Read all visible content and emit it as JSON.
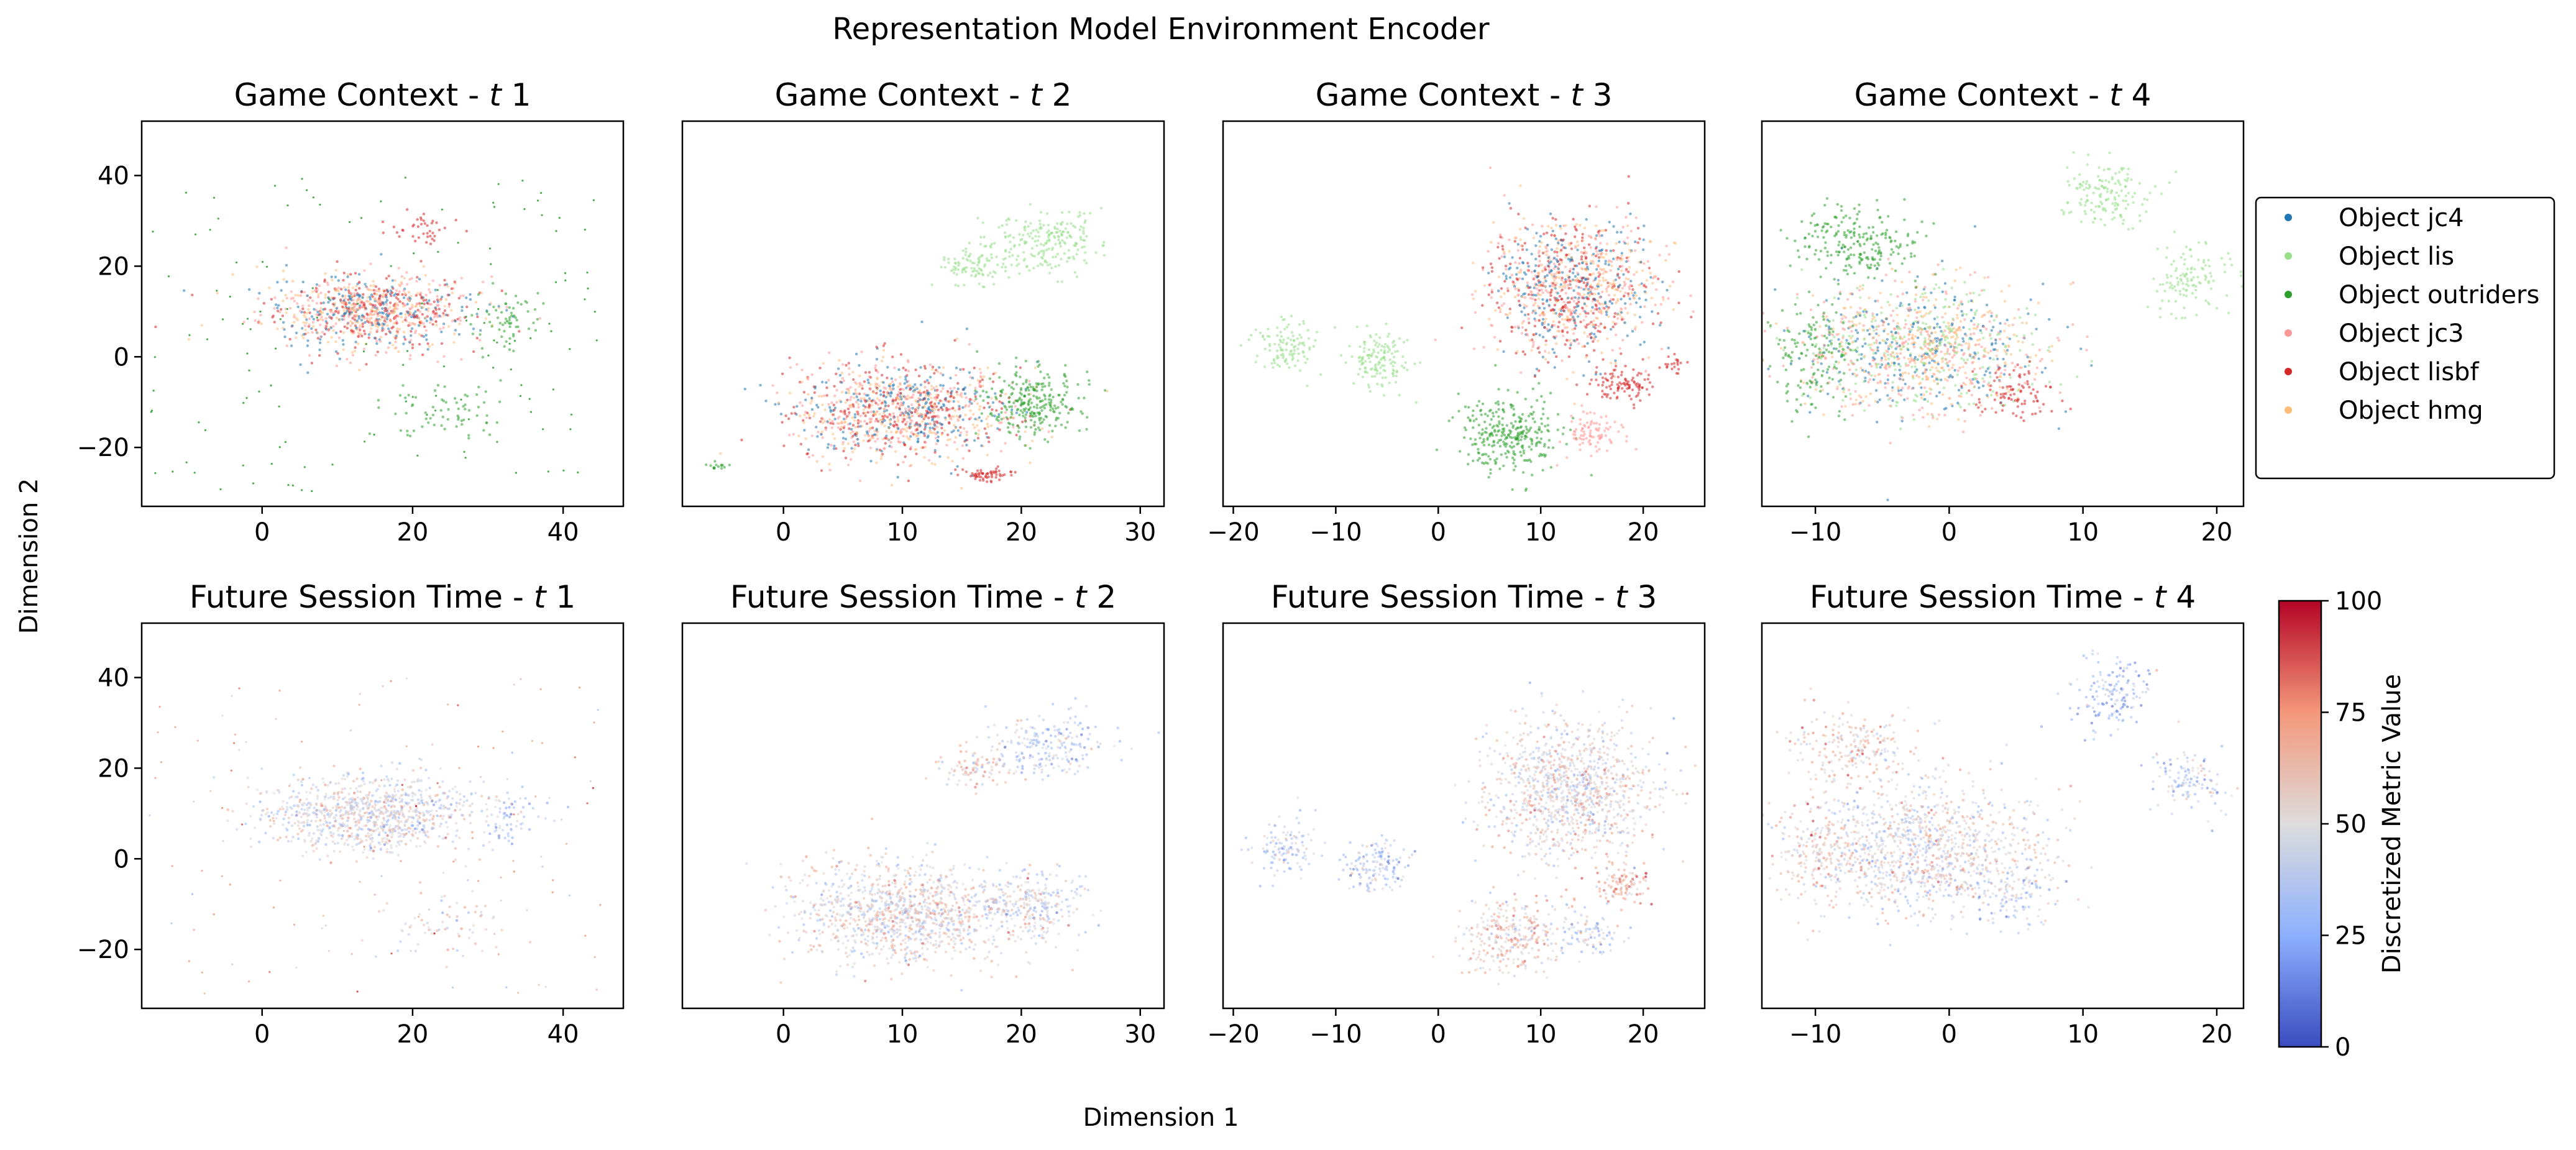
{
  "figure": {
    "title": "Representation Model Environment Encoder",
    "xlabel": "Dimension 1",
    "ylabel": "Dimension 2"
  },
  "legend": {
    "placement": "right of top row",
    "entries": [
      {
        "label": "Object jc4",
        "color": "#1f77b4"
      },
      {
        "label": "Object lis",
        "color": "#98df8a"
      },
      {
        "label": "Object outriders",
        "color": "#2ca02c"
      },
      {
        "label": "Object jc3",
        "color": "#ff9896"
      },
      {
        "label": "Object lisbf",
        "color": "#d62728"
      },
      {
        "label": "Object hmg",
        "color": "#ffbb78"
      }
    ]
  },
  "colorbar": {
    "label": "Discretized Metric Value",
    "colormap": "coolwarm",
    "range": [
      0,
      100
    ],
    "ticks": [
      "0",
      "25",
      "50",
      "75",
      "100"
    ]
  },
  "chart_data": [
    {
      "type": "scatter",
      "title_prefix": "Game Context - ",
      "title_var": "t",
      "title_num": "1",
      "color_by": "category",
      "xlim": [
        -16,
        48
      ],
      "ylim": [
        -33,
        52
      ],
      "xticks": [
        {
          "v": 0,
          "l": "0"
        },
        {
          "v": 20,
          "l": "20"
        },
        {
          "v": 40,
          "l": "40"
        }
      ],
      "yticks": [
        {
          "v": -20,
          "l": "−20"
        },
        {
          "v": 0,
          "l": "0"
        },
        {
          "v": 20,
          "l": "20"
        },
        {
          "v": 40,
          "l": "40"
        }
      ],
      "clusters": [
        {
          "cx": 14,
          "cy": 10,
          "rx": 14,
          "ry": 8,
          "n": 950,
          "cats": [
            5,
            3,
            0,
            4
          ]
        },
        {
          "cx": 22,
          "cy": 28,
          "rx": 5,
          "ry": 4,
          "n": 40,
          "cats": [
            4
          ]
        },
        {
          "cx": 33,
          "cy": 9,
          "rx": 4,
          "ry": 6,
          "n": 60,
          "cats": [
            2
          ]
        },
        {
          "cx": 24,
          "cy": -12,
          "rx": 8,
          "ry": 7,
          "n": 70,
          "cats": [
            2
          ]
        },
        {
          "cx": 15,
          "cy": 5,
          "rx": 30,
          "ry": 35,
          "n": 140,
          "cats": [
            2
          ]
        }
      ]
    },
    {
      "type": "scatter",
      "title_prefix": "Game Context - ",
      "title_var": "t",
      "title_num": "2",
      "color_by": "category",
      "xlim": [
        -8.5,
        32
      ],
      "ylim": [
        -33,
        52
      ],
      "xticks": [
        {
          "v": 0,
          "l": "0"
        },
        {
          "v": 10,
          "l": "10"
        },
        {
          "v": 20,
          "l": "20"
        },
        {
          "v": 30,
          "l": "30"
        }
      ],
      "yticks": [],
      "clusters": [
        {
          "cx": 10,
          "cy": -12,
          "rx": 9,
          "ry": 11,
          "n": 1100,
          "cats": [
            5,
            3,
            0,
            4
          ]
        },
        {
          "cx": 21,
          "cy": -10,
          "rx": 4,
          "ry": 7,
          "n": 260,
          "cats": [
            2
          ]
        },
        {
          "cx": 17,
          "cy": -26,
          "rx": 2,
          "ry": 1.5,
          "n": 60,
          "cats": [
            4
          ]
        },
        {
          "cx": 22,
          "cy": 25,
          "rx": 5,
          "ry": 7,
          "n": 220,
          "cats": [
            1
          ]
        },
        {
          "cx": 16,
          "cy": 20,
          "rx": 3,
          "ry": 4,
          "n": 90,
          "cats": [
            1
          ]
        },
        {
          "cx": -5.5,
          "cy": -24,
          "rx": 1,
          "ry": 1,
          "n": 15,
          "cats": [
            2
          ]
        }
      ]
    },
    {
      "type": "scatter",
      "title_prefix": "Game Context - ",
      "title_var": "t",
      "title_num": "3",
      "color_by": "category",
      "xlim": [
        -21,
        26
      ],
      "ylim": [
        -33,
        52
      ],
      "xticks": [
        {
          "v": -20,
          "l": "−20"
        },
        {
          "v": -10,
          "l": "−10"
        },
        {
          "v": 0,
          "l": "0"
        },
        {
          "v": 10,
          "l": "10"
        },
        {
          "v": 20,
          "l": "20"
        }
      ],
      "yticks": [],
      "clusters": [
        {
          "cx": 13,
          "cy": 15,
          "rx": 8,
          "ry": 15,
          "n": 1100,
          "cats": [
            5,
            3,
            0,
            4
          ]
        },
        {
          "cx": 7,
          "cy": -17,
          "rx": 5,
          "ry": 8,
          "n": 300,
          "cats": [
            2
          ]
        },
        {
          "cx": 15,
          "cy": -17,
          "rx": 3,
          "ry": 5,
          "n": 90,
          "cats": [
            3
          ]
        },
        {
          "cx": 18,
          "cy": -6,
          "rx": 3,
          "ry": 4,
          "n": 100,
          "cats": [
            4
          ]
        },
        {
          "cx": -15,
          "cy": 2,
          "rx": 3,
          "ry": 6,
          "n": 110,
          "cats": [
            1
          ]
        },
        {
          "cx": -6,
          "cy": -1,
          "rx": 3,
          "ry": 6,
          "n": 140,
          "cats": [
            1
          ]
        },
        {
          "cx": 23,
          "cy": -2,
          "rx": 1,
          "ry": 2,
          "n": 20,
          "cats": [
            4
          ]
        }
      ]
    },
    {
      "type": "scatter",
      "title_prefix": "Game Context - ",
      "title_var": "t",
      "title_num": "4",
      "color_by": "category",
      "xlim": [
        -14,
        22
      ],
      "ylim": [
        -33,
        52
      ],
      "xticks": [
        {
          "v": -10,
          "l": "−10"
        },
        {
          "v": 0,
          "l": "0"
        },
        {
          "v": 10,
          "l": "10"
        },
        {
          "v": 20,
          "l": "20"
        }
      ],
      "yticks": [],
      "clusters": [
        {
          "cx": -2,
          "cy": 2,
          "rx": 9,
          "ry": 14,
          "n": 1200,
          "cats": [
            5,
            3,
            0,
            1
          ]
        },
        {
          "cx": -7,
          "cy": 25,
          "rx": 5,
          "ry": 8,
          "n": 220,
          "cats": [
            2
          ]
        },
        {
          "cx": -10,
          "cy": 0,
          "rx": 3,
          "ry": 12,
          "n": 140,
          "cats": [
            2
          ]
        },
        {
          "cx": 5,
          "cy": -8,
          "rx": 3,
          "ry": 6,
          "n": 90,
          "cats": [
            4
          ]
        },
        {
          "cx": 12,
          "cy": 36,
          "rx": 3,
          "ry": 8,
          "n": 150,
          "cats": [
            1
          ]
        },
        {
          "cx": 18,
          "cy": 17,
          "rx": 3,
          "ry": 7,
          "n": 120,
          "cats": [
            1
          ]
        }
      ]
    },
    {
      "type": "scatter",
      "title_prefix": "Future Session Time - ",
      "title_var": "t",
      "title_num": "1",
      "color_by": "metric",
      "xlim": [
        -16,
        48
      ],
      "ylim": [
        -33,
        52
      ],
      "xticks": [
        {
          "v": 0,
          "l": "0"
        },
        {
          "v": 20,
          "l": "20"
        },
        {
          "v": 40,
          "l": "40"
        }
      ],
      "yticks": [
        {
          "v": -20,
          "l": "−20"
        },
        {
          "v": 0,
          "l": "0"
        },
        {
          "v": 20,
          "l": "20"
        },
        {
          "v": 40,
          "l": "40"
        }
      ],
      "clusters": [
        {
          "cx": 14,
          "cy": 10,
          "rx": 14,
          "ry": 8,
          "n": 950,
          "m": 48
        },
        {
          "cx": 33,
          "cy": 9,
          "rx": 4,
          "ry": 6,
          "n": 60,
          "m": 30
        },
        {
          "cx": 24,
          "cy": -14,
          "rx": 8,
          "ry": 7,
          "n": 70,
          "m": 55
        },
        {
          "cx": 15,
          "cy": 5,
          "rx": 30,
          "ry": 35,
          "n": 140,
          "m": 65
        }
      ]
    },
    {
      "type": "scatter",
      "title_prefix": "Future Session Time - ",
      "title_var": "t",
      "title_num": "2",
      "color_by": "metric",
      "xlim": [
        -8.5,
        32
      ],
      "ylim": [
        -33,
        52
      ],
      "xticks": [
        {
          "v": 0,
          "l": "0"
        },
        {
          "v": 10,
          "l": "10"
        },
        {
          "v": 20,
          "l": "20"
        },
        {
          "v": 30,
          "l": "30"
        }
      ],
      "yticks": [],
      "clusters": [
        {
          "cx": 10,
          "cy": -12,
          "rx": 9,
          "ry": 11,
          "n": 1100,
          "m": 52
        },
        {
          "cx": 21,
          "cy": -10,
          "rx": 4,
          "ry": 7,
          "n": 260,
          "m": 45
        },
        {
          "cx": 22,
          "cy": 25,
          "rx": 5,
          "ry": 7,
          "n": 220,
          "m": 38
        },
        {
          "cx": 16,
          "cy": 20,
          "rx": 3,
          "ry": 4,
          "n": 90,
          "m": 60
        }
      ]
    },
    {
      "type": "scatter",
      "title_prefix": "Future Session Time - ",
      "title_var": "t",
      "title_num": "3",
      "color_by": "metric",
      "xlim": [
        -21,
        26
      ],
      "ylim": [
        -33,
        52
      ],
      "xticks": [
        {
          "v": -20,
          "l": "−20"
        },
        {
          "v": -10,
          "l": "−10"
        },
        {
          "v": 0,
          "l": "0"
        },
        {
          "v": 10,
          "l": "10"
        },
        {
          "v": 20,
          "l": "20"
        }
      ],
      "yticks": [],
      "clusters": [
        {
          "cx": 13,
          "cy": 15,
          "rx": 8,
          "ry": 15,
          "n": 1100,
          "m": 52
        },
        {
          "cx": 7,
          "cy": -17,
          "rx": 5,
          "ry": 8,
          "n": 300,
          "m": 58
        },
        {
          "cx": 15,
          "cy": -17,
          "rx": 3,
          "ry": 5,
          "n": 90,
          "m": 40
        },
        {
          "cx": 18,
          "cy": -6,
          "rx": 3,
          "ry": 4,
          "n": 100,
          "m": 70
        },
        {
          "cx": -15,
          "cy": 2,
          "rx": 3,
          "ry": 6,
          "n": 110,
          "m": 38
        },
        {
          "cx": -6,
          "cy": -1,
          "rx": 3,
          "ry": 6,
          "n": 140,
          "m": 35
        }
      ]
    },
    {
      "type": "scatter",
      "title_prefix": "Future Session Time - ",
      "title_var": "t",
      "title_num": "4",
      "color_by": "metric",
      "xlim": [
        -14,
        22
      ],
      "ylim": [
        -33,
        52
      ],
      "xticks": [
        {
          "v": -10,
          "l": "−10"
        },
        {
          "v": 0,
          "l": "0"
        },
        {
          "v": 10,
          "l": "10"
        },
        {
          "v": 20,
          "l": "20"
        }
      ],
      "yticks": [],
      "clusters": [
        {
          "cx": -2,
          "cy": 2,
          "rx": 9,
          "ry": 14,
          "n": 1200,
          "m": 50
        },
        {
          "cx": -7,
          "cy": 25,
          "rx": 5,
          "ry": 8,
          "n": 220,
          "m": 58
        },
        {
          "cx": -10,
          "cy": 0,
          "rx": 3,
          "ry": 12,
          "n": 140,
          "m": 60
        },
        {
          "cx": 5,
          "cy": -8,
          "rx": 3,
          "ry": 6,
          "n": 90,
          "m": 35
        },
        {
          "cx": 12,
          "cy": 36,
          "rx": 3,
          "ry": 8,
          "n": 150,
          "m": 30
        },
        {
          "cx": 18,
          "cy": 17,
          "rx": 3,
          "ry": 7,
          "n": 120,
          "m": 40
        }
      ]
    }
  ]
}
